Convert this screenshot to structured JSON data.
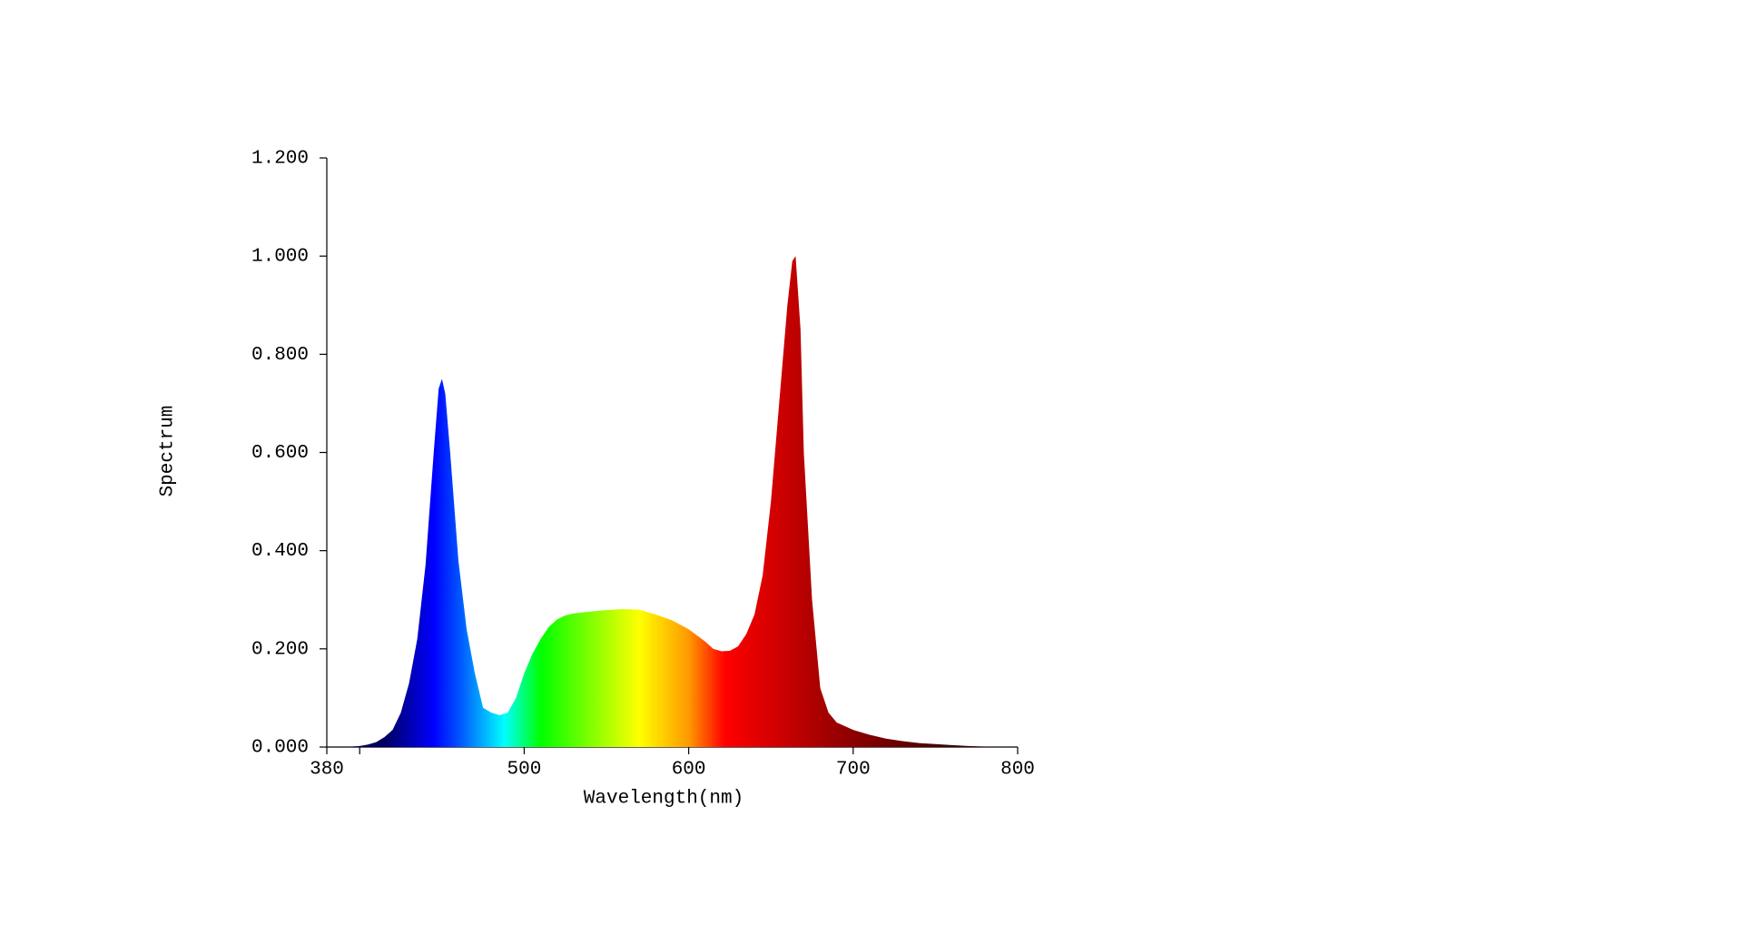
{
  "chart_data": {
    "type": "area",
    "xlabel": "Wavelength(nm)",
    "ylabel": "Spectrum",
    "xlim": [
      380,
      800
    ],
    "ylim": [
      0,
      1.2
    ],
    "xticks": [
      380,
      {
        "value": 400,
        "label": null
      },
      500,
      600,
      700,
      800
    ],
    "yticks": [
      {
        "value": 0,
        "label": "0.000"
      },
      {
        "value": 0.2,
        "label": "0.200"
      },
      {
        "value": 0.4,
        "label": "0.400"
      },
      {
        "value": 0.6,
        "label": "0.600"
      },
      {
        "value": 0.8,
        "label": "0.800"
      },
      {
        "value": 1.0,
        "label": "1.000"
      },
      {
        "value": 1.2,
        "label": "1.200"
      }
    ],
    "gradient": [
      {
        "x": 415,
        "color": "#000060"
      },
      {
        "x": 445,
        "color": "#0000ff"
      },
      {
        "x": 460,
        "color": "#0050ff"
      },
      {
        "x": 488,
        "color": "#00ffff"
      },
      {
        "x": 510,
        "color": "#00ff00"
      },
      {
        "x": 570,
        "color": "#ffff00"
      },
      {
        "x": 600,
        "color": "#ff9900"
      },
      {
        "x": 622,
        "color": "#ff0000"
      },
      {
        "x": 690,
        "color": "#990000"
      },
      {
        "x": 760,
        "color": "#400000"
      }
    ],
    "x": [
      380,
      390,
      400,
      405,
      410,
      415,
      420,
      425,
      430,
      435,
      440,
      445,
      448,
      450,
      452,
      455,
      460,
      465,
      470,
      475,
      480,
      485,
      490,
      495,
      500,
      505,
      510,
      515,
      520,
      525,
      530,
      540,
      550,
      560,
      570,
      580,
      590,
      600,
      610,
      615,
      620,
      625,
      630,
      635,
      640,
      645,
      650,
      655,
      660,
      663,
      665,
      668,
      670,
      675,
      680,
      685,
      690,
      700,
      710,
      720,
      730,
      740,
      750,
      760,
      770,
      780,
      800
    ],
    "values": [
      0,
      0,
      0.002,
      0.005,
      0.01,
      0.02,
      0.035,
      0.07,
      0.13,
      0.22,
      0.37,
      0.6,
      0.73,
      0.75,
      0.72,
      0.6,
      0.38,
      0.24,
      0.15,
      0.08,
      0.07,
      0.065,
      0.07,
      0.1,
      0.15,
      0.19,
      0.22,
      0.245,
      0.26,
      0.268,
      0.272,
      0.276,
      0.279,
      0.281,
      0.28,
      0.27,
      0.258,
      0.24,
      0.215,
      0.2,
      0.195,
      0.196,
      0.205,
      0.23,
      0.27,
      0.35,
      0.5,
      0.7,
      0.9,
      0.99,
      1.0,
      0.85,
      0.6,
      0.3,
      0.12,
      0.07,
      0.05,
      0.035,
      0.025,
      0.017,
      0.012,
      0.008,
      0.006,
      0.004,
      0.002,
      0.001,
      0
    ]
  }
}
